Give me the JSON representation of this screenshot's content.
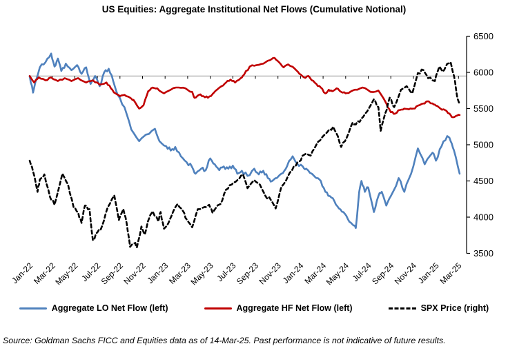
{
  "title": "US Equities: Aggregate Institutional Net Flows (Cumulative Notional)",
  "footer": "Source: Goldman Sachs FICC and Equities data as of 14-Mar-25. Past performance is not indicative of future results.",
  "legend": {
    "items": [
      {
        "label": "Aggregate LO Net Flow (left)"
      },
      {
        "label": "Aggregate HF Net Flow (left)"
      },
      {
        "label": "SPX Price (right)"
      }
    ]
  },
  "chart_data": {
    "type": "line",
    "title": "US Equities: Aggregate Institutional Net Flows (Cumulative Notional)",
    "xlabel": "",
    "ylabel_right": "SPX Price",
    "left_axis_unlabeled": true,
    "grid": "single horizontal reference line at left-axis zero (aligns to ~5950 on right axis)",
    "legend_position": "bottom",
    "x_unit": "months since Jan-2022",
    "x_tick_labels": [
      "Jan-22",
      "Mar-22",
      "May-22",
      "Jul-22",
      "Sep-22",
      "Nov-22",
      "Jan-23",
      "Mar-23",
      "May-23",
      "Jul-23",
      "Sep-23",
      "Nov-23",
      "Jan-24",
      "Mar-24",
      "May-24",
      "Jul-24",
      "Sep-24",
      "Nov-24",
      "Jan-25",
      "Mar-25"
    ],
    "right_axis": {
      "ticks": [
        6500,
        6000,
        5500,
        5000,
        4500,
        4000,
        3500
      ],
      "range": [
        3500,
        6500
      ]
    },
    "zero_line_right_axis_equivalent": 5950,
    "colors": {
      "lo": "#4f81bd",
      "hf": "#c00000",
      "spx": "#000000",
      "zero_line": "#9a9a9a",
      "axis": "#000000"
    },
    "note": "LO and HF cumulative net-flow series are plotted on the unlabeled left axis; values below are their positions expressed in right-axis (SPX) units as read from the chart.",
    "series": [
      {
        "name": "Aggregate LO Net Flow (left)",
        "axis": "left",
        "color": "#4f81bd",
        "dash": "",
        "noise": 26,
        "seed": 3.7,
        "points": [
          [
            0,
            5950
          ],
          [
            0.3,
            5720
          ],
          [
            0.9,
            6070
          ],
          [
            1.4,
            6140
          ],
          [
            1.9,
            6260
          ],
          [
            2.2,
            6080
          ],
          [
            2.5,
            6190
          ],
          [
            2.8,
            6020
          ],
          [
            3.2,
            6120
          ],
          [
            3.7,
            6030
          ],
          [
            4.2,
            6100
          ],
          [
            4.6,
            5980
          ],
          [
            5.0,
            6070
          ],
          [
            5.4,
            5840
          ],
          [
            5.8,
            5950
          ],
          [
            6.2,
            5810
          ],
          [
            6.6,
            6000
          ],
          [
            7.0,
            6050
          ],
          [
            7.4,
            5880
          ],
          [
            7.8,
            5690
          ],
          [
            8.4,
            5520
          ],
          [
            9.0,
            5210
          ],
          [
            9.7,
            5050
          ],
          [
            10.3,
            5140
          ],
          [
            11.1,
            5220
          ],
          [
            11.5,
            5050
          ],
          [
            12.1,
            4980
          ],
          [
            12.5,
            4920
          ],
          [
            12.9,
            4970
          ],
          [
            13.4,
            4840
          ],
          [
            13.9,
            4760
          ],
          [
            14.4,
            4690
          ],
          [
            14.7,
            4600
          ],
          [
            15.2,
            4670
          ],
          [
            15.6,
            4650
          ],
          [
            16.0,
            4810
          ],
          [
            16.4,
            4730
          ],
          [
            16.8,
            4650
          ],
          [
            17.2,
            4700
          ],
          [
            17.6,
            4670
          ],
          [
            18.0,
            4710
          ],
          [
            18.4,
            4600
          ],
          [
            18.8,
            4640
          ],
          [
            19.3,
            4570
          ],
          [
            19.9,
            4670
          ],
          [
            20.3,
            4590
          ],
          [
            20.7,
            4640
          ],
          [
            21.1,
            4540
          ],
          [
            21.5,
            4500
          ],
          [
            21.9,
            4540
          ],
          [
            22.3,
            4600
          ],
          [
            22.7,
            4670
          ],
          [
            23.0,
            4780
          ],
          [
            23.3,
            4840
          ],
          [
            23.7,
            4740
          ],
          [
            24.2,
            4700
          ],
          [
            24.5,
            4670
          ],
          [
            25.0,
            4600
          ],
          [
            25.4,
            4540
          ],
          [
            25.8,
            4500
          ],
          [
            26.2,
            4350
          ],
          [
            26.6,
            4290
          ],
          [
            27.0,
            4220
          ],
          [
            27.4,
            4120
          ],
          [
            27.8,
            4070
          ],
          [
            28.2,
            3970
          ],
          [
            28.6,
            3900
          ],
          [
            28.9,
            3850
          ],
          [
            29.2,
            4350
          ],
          [
            29.4,
            4500
          ],
          [
            29.7,
            4350
          ],
          [
            30.0,
            4410
          ],
          [
            30.5,
            4070
          ],
          [
            30.9,
            4290
          ],
          [
            31.2,
            4350
          ],
          [
            31.6,
            4160
          ],
          [
            32.0,
            4290
          ],
          [
            32.7,
            4540
          ],
          [
            33.2,
            4350
          ],
          [
            33.8,
            4600
          ],
          [
            34.4,
            4950
          ],
          [
            35.0,
            4730
          ],
          [
            35.7,
            4890
          ],
          [
            36.0,
            4780
          ],
          [
            36.5,
            4980
          ],
          [
            37.0,
            5120
          ],
          [
            37.3,
            5050
          ],
          [
            37.6,
            4920
          ],
          [
            38.1,
            4600
          ]
        ]
      },
      {
        "name": "Aggregate HF Net Flow (left)",
        "axis": "left",
        "color": "#c00000",
        "dash": "",
        "noise": 13,
        "seed": 8.1,
        "points": [
          [
            0,
            5950
          ],
          [
            0.4,
            5860
          ],
          [
            0.8,
            5930
          ],
          [
            1.4,
            5890
          ],
          [
            1.9,
            5930
          ],
          [
            2.5,
            5880
          ],
          [
            3.1,
            5920
          ],
          [
            3.7,
            5880
          ],
          [
            4.3,
            5920
          ],
          [
            5.0,
            5860
          ],
          [
            5.6,
            5890
          ],
          [
            6.2,
            5830
          ],
          [
            6.8,
            5860
          ],
          [
            7.2,
            5780
          ],
          [
            7.6,
            5710
          ],
          [
            8.0,
            5670
          ],
          [
            8.4,
            5690
          ],
          [
            8.9,
            5650
          ],
          [
            9.2,
            5620
          ],
          [
            9.7,
            5500
          ],
          [
            10.1,
            5550
          ],
          [
            10.5,
            5740
          ],
          [
            10.9,
            5790
          ],
          [
            11.3,
            5780
          ],
          [
            11.9,
            5710
          ],
          [
            12.5,
            5760
          ],
          [
            13.2,
            5790
          ],
          [
            13.8,
            5780
          ],
          [
            14.4,
            5730
          ],
          [
            14.6,
            5650
          ],
          [
            15.0,
            5690
          ],
          [
            15.4,
            5670
          ],
          [
            15.8,
            5650
          ],
          [
            16.2,
            5700
          ],
          [
            16.6,
            5760
          ],
          [
            17.0,
            5810
          ],
          [
            17.4,
            5860
          ],
          [
            17.8,
            5900
          ],
          [
            18.2,
            5860
          ],
          [
            18.7,
            5920
          ],
          [
            19.0,
            5970
          ],
          [
            19.5,
            6080
          ],
          [
            20.1,
            6100
          ],
          [
            20.7,
            6120
          ],
          [
            21.3,
            6170
          ],
          [
            21.7,
            6200
          ],
          [
            22.1,
            6140
          ],
          [
            22.5,
            6070
          ],
          [
            22.9,
            6110
          ],
          [
            23.5,
            6050
          ],
          [
            23.9,
            5980
          ],
          [
            24.3,
            5930
          ],
          [
            24.7,
            5950
          ],
          [
            25.0,
            5890
          ],
          [
            25.4,
            5840
          ],
          [
            25.8,
            5790
          ],
          [
            26.2,
            5710
          ],
          [
            26.5,
            5760
          ],
          [
            26.8,
            5740
          ],
          [
            27.2,
            5780
          ],
          [
            27.6,
            5730
          ],
          [
            28.0,
            5710
          ],
          [
            28.4,
            5730
          ],
          [
            28.8,
            5760
          ],
          [
            29.5,
            5790
          ],
          [
            30.2,
            5730
          ],
          [
            30.9,
            5750
          ],
          [
            31.6,
            5570
          ],
          [
            32.0,
            5450
          ],
          [
            32.4,
            5430
          ],
          [
            32.8,
            5480
          ],
          [
            33.2,
            5500
          ],
          [
            33.6,
            5490
          ],
          [
            34.0,
            5500
          ],
          [
            34.4,
            5540
          ],
          [
            34.9,
            5570
          ],
          [
            35.2,
            5600
          ],
          [
            35.7,
            5570
          ],
          [
            36.0,
            5540
          ],
          [
            36.4,
            5500
          ],
          [
            36.8,
            5480
          ],
          [
            37.2,
            5430
          ],
          [
            37.5,
            5380
          ],
          [
            37.8,
            5400
          ],
          [
            38.1,
            5410
          ]
        ]
      },
      {
        "name": "SPX Price (right)",
        "axis": "right",
        "color": "#000000",
        "dash": "5 4",
        "noise": 24,
        "seed": 1.3,
        "points": [
          [
            0,
            4780
          ],
          [
            0.3,
            4630
          ],
          [
            0.7,
            4350
          ],
          [
            0.9,
            4520
          ],
          [
            1.3,
            4590
          ],
          [
            1.8,
            4280
          ],
          [
            2.2,
            4170
          ],
          [
            2.9,
            4600
          ],
          [
            3.4,
            4450
          ],
          [
            3.9,
            4130
          ],
          [
            4.3,
            4060
          ],
          [
            4.6,
            3920
          ],
          [
            4.9,
            4160
          ],
          [
            5.3,
            4110
          ],
          [
            5.6,
            3680
          ],
          [
            6.0,
            3790
          ],
          [
            6.4,
            3870
          ],
          [
            6.9,
            4130
          ],
          [
            7.5,
            4300
          ],
          [
            7.9,
            3960
          ],
          [
            8.3,
            4110
          ],
          [
            8.6,
            3910
          ],
          [
            8.9,
            3590
          ],
          [
            9.3,
            3640
          ],
          [
            9.5,
            3580
          ],
          [
            9.9,
            3870
          ],
          [
            10.2,
            3760
          ],
          [
            10.6,
            3990
          ],
          [
            10.9,
            4080
          ],
          [
            11.4,
            3940
          ],
          [
            11.6,
            4070
          ],
          [
            11.9,
            3840
          ],
          [
            12.3,
            3920
          ],
          [
            12.7,
            4070
          ],
          [
            13.1,
            4180
          ],
          [
            13.6,
            4080
          ],
          [
            13.9,
            3970
          ],
          [
            14.4,
            3860
          ],
          [
            14.9,
            4110
          ],
          [
            15.5,
            4140
          ],
          [
            15.9,
            4170
          ],
          [
            16.2,
            4060
          ],
          [
            16.9,
            4180
          ],
          [
            17.4,
            4380
          ],
          [
            17.9,
            4450
          ],
          [
            18.4,
            4510
          ],
          [
            18.9,
            4590
          ],
          [
            19.3,
            4400
          ],
          [
            19.9,
            4510
          ],
          [
            20.4,
            4450
          ],
          [
            20.9,
            4290
          ],
          [
            21.4,
            4230
          ],
          [
            21.8,
            4120
          ],
          [
            22.3,
            4420
          ],
          [
            22.9,
            4570
          ],
          [
            23.4,
            4700
          ],
          [
            23.9,
            4770
          ],
          [
            24.3,
            4860
          ],
          [
            24.9,
            4850
          ],
          [
            25.4,
            5000
          ],
          [
            25.9,
            5100
          ],
          [
            26.4,
            5180
          ],
          [
            26.9,
            5250
          ],
          [
            27.3,
            5120
          ],
          [
            27.6,
            4970
          ],
          [
            28.1,
            5100
          ],
          [
            28.6,
            5300
          ],
          [
            28.9,
            5280
          ],
          [
            29.4,
            5360
          ],
          [
            29.9,
            5460
          ],
          [
            30.5,
            5630
          ],
          [
            30.9,
            5520
          ],
          [
            31.1,
            5190
          ],
          [
            31.5,
            5430
          ],
          [
            31.9,
            5650
          ],
          [
            32.3,
            5520
          ],
          [
            32.9,
            5760
          ],
          [
            33.4,
            5810
          ],
          [
            33.9,
            5710
          ],
          [
            34.4,
            5990
          ],
          [
            34.9,
            6030
          ],
          [
            35.3,
            5920
          ],
          [
            35.9,
            5880
          ],
          [
            36.3,
            6080
          ],
          [
            36.6,
            6010
          ],
          [
            37.0,
            6120
          ],
          [
            37.3,
            6140
          ],
          [
            37.6,
            5950
          ],
          [
            37.9,
            5640
          ],
          [
            38.1,
            5560
          ]
        ]
      }
    ]
  }
}
